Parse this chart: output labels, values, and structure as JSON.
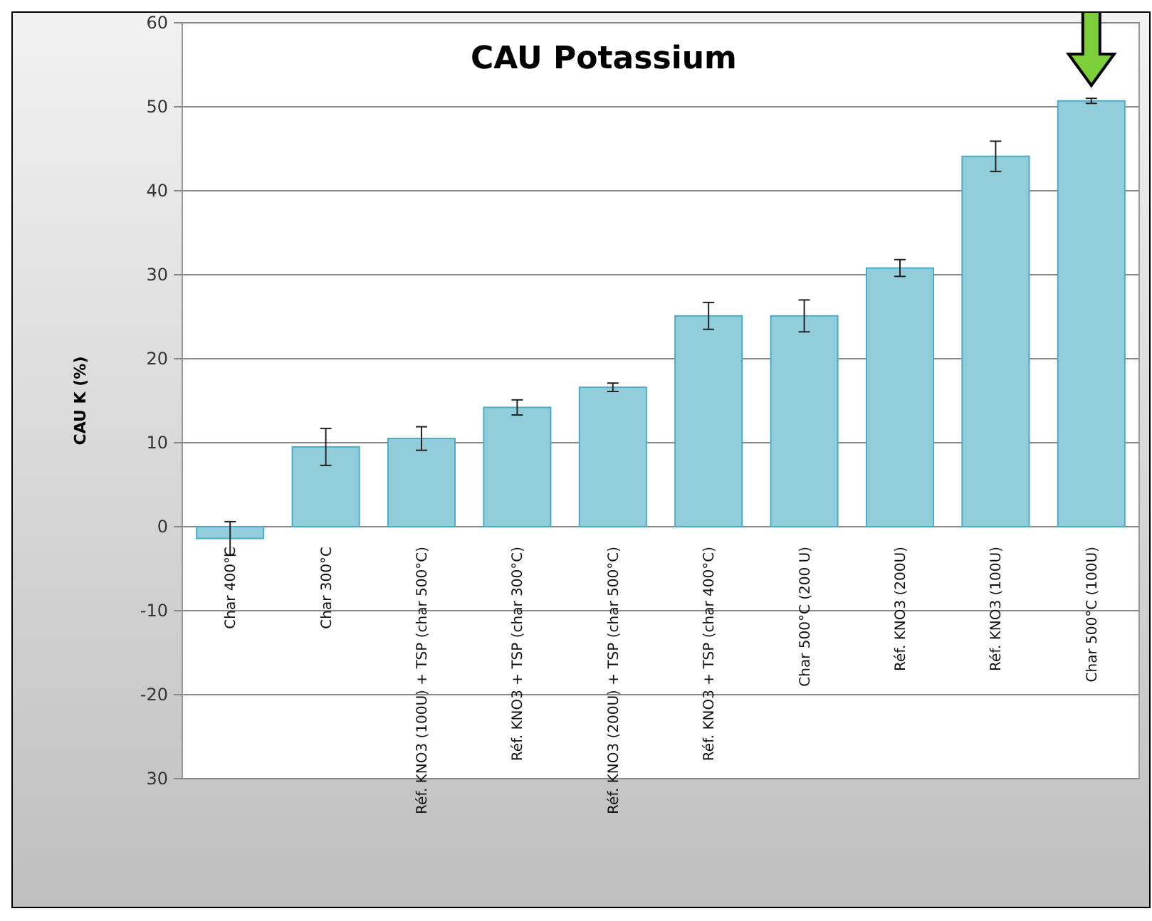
{
  "chart_data": {
    "type": "bar",
    "title": "CAU Potassium",
    "ylabel": "CAU K (%)",
    "categories": [
      "Char 400°C",
      "Char 300°C",
      "Réf. KNO3 (100U) + TSP (char 500°C)",
      "Réf. KNO3 + TSP (char 300°C)",
      "Réf. KNO3 (200U) + TSP (char 500°C)",
      "Réf. KNO3 + TSP (char 400°C)",
      "Char 500°C (200 U)",
      "Réf. KNO3 (200U)",
      "Réf. KNO3 (100U)",
      "Char 500°C (100U)"
    ],
    "values": [
      -1.4,
      9.5,
      10.5,
      14.2,
      16.6,
      25.1,
      25.1,
      30.8,
      44.1,
      50.7
    ],
    "errors": [
      2,
      2.2,
      1.4,
      0.9,
      0.5,
      1.6,
      1.9,
      1,
      1.8,
      0.3
    ],
    "color": "#92cddc",
    "ylim": [
      -30,
      60
    ],
    "yticks": [
      {
        "value": -30,
        "label": "30"
      },
      -20,
      -10,
      0,
      10,
      20,
      30,
      40,
      50,
      60
    ],
    "grid": "y"
  }
}
